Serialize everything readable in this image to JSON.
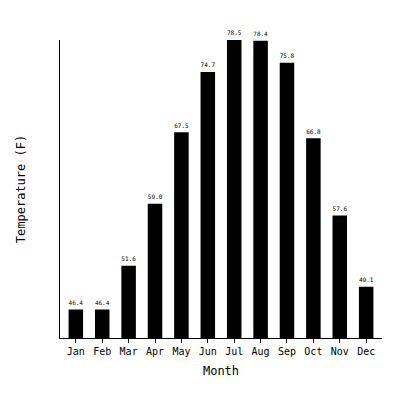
{
  "chart_data": {
    "type": "bar",
    "x_label": "Month",
    "y_label": "Temperature (F)",
    "categories": [
      "Jan",
      "Feb",
      "Mar",
      "Apr",
      "May",
      "Jun",
      "Jul",
      "Aug",
      "Sep",
      "Oct",
      "Nov",
      "Dec"
    ],
    "values": [
      46.4,
      46.4,
      51.6,
      59.0,
      67.5,
      74.7,
      78.5,
      78.4,
      75.8,
      66.8,
      57.6,
      49.1
    ],
    "value_labels": [
      "46.4",
      "46.4",
      "51.6",
      "59.0",
      "67.5",
      "74.7",
      "78.5",
      "78.4",
      "75.8",
      "66.8",
      "57.6",
      "49.1"
    ],
    "color": "#000000",
    "ylim": [
      43,
      78.5
    ],
    "grid": false,
    "data_labels": true,
    "tick_labels": "x"
  }
}
